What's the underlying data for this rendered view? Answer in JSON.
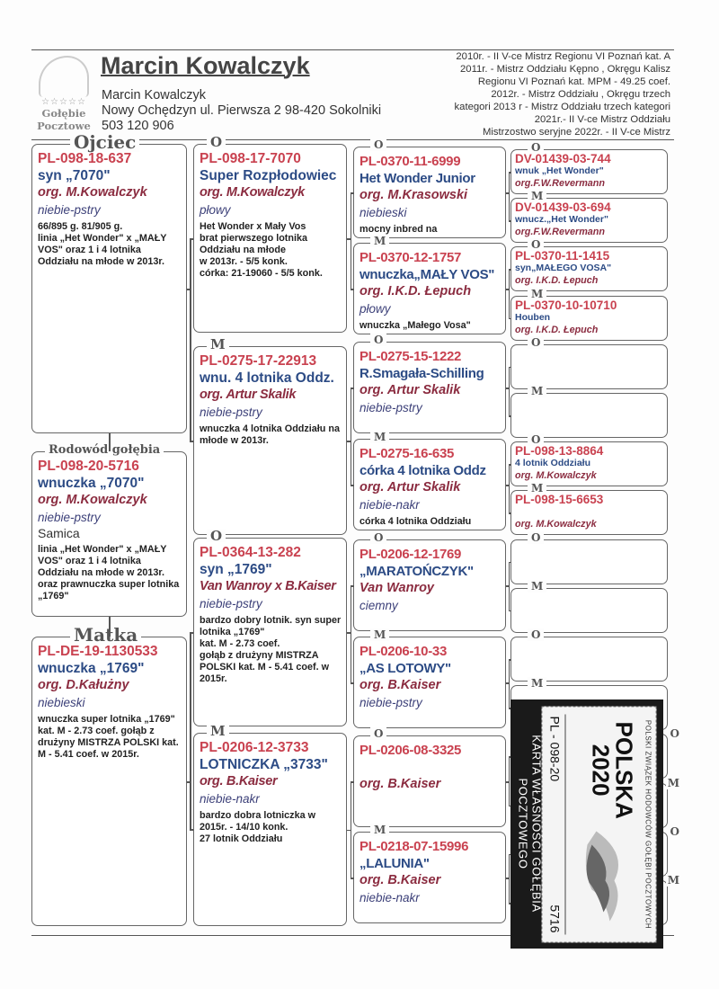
{
  "header": {
    "logo": {
      "stars": "☆☆☆☆☆",
      "line1": "Gołębie",
      "line2": "Pocztowe"
    },
    "title": "Marcin Kowalczyk",
    "owner": "Marcin Kowalczyk",
    "address": "Nowy Ochędzyn  ul. Pierwsza 2  98-420 Sokolniki",
    "phone": "503 120 906",
    "honors": [
      "2010r. - II V-ce Mistrz Regionu VI Poznań kat. A",
      "2011r. - Mistrz Oddziału Kępno , Okręgu Kalisz",
      "Regionu VI Poznań kat. MPM - 49.25 coef.",
      "2012r. - Mistrz Oddziału , Okręgu trzech",
      "kategori     2013 r - Mistrz Oddziału trzech kategori",
      "2021r.- II V-ce Mistrz Oddziału",
      "Mistrzostwo seryjne 2022r. - II V-ce Mistrz"
    ]
  },
  "colors": {
    "ring": "#c94250",
    "name": "#2c4b85",
    "breeder": "#8b2c40",
    "color": "#3b3f78"
  },
  "subject": {
    "label": "Rodowód gołębia",
    "ring": "PL-098-20-5716",
    "name": "wnuczka „7070\"",
    "breeder": "org. M.Kowalczyk",
    "color": "niebie-pstry",
    "sex": "Samica",
    "notes": "linia „Het Wonder\" x „MAŁY VOS\" oraz 1 i 4 lotnika Oddziału na młode w 2013r. oraz prawnuczka super lotnika „1769\""
  },
  "sire": {
    "label": "Ojciec",
    "ring": "PL-098-18-637",
    "name": "syn „7070\"",
    "breeder": "org. M.Kowalczyk",
    "color": "niebie-pstry",
    "notes": "66/895 g.         81/905 g.\nlinia „Het Wonder\" x „MAŁY VOS\" oraz 1 i 4 lotnika Oddziału na młode w 2013r."
  },
  "dam": {
    "label": "Matka",
    "ring": "PL-DE-19-1130533",
    "name": "wnuczka „1769\"",
    "breeder": "org. D.Kałużny",
    "color": "niebieski",
    "notes": "wnuczka super lotnika „1769\" kat. M - 2.73 coef. gołąb z drużyny MISTRZA POLSKI kat. M - 5.41 coef. w 2015r."
  },
  "gen2": [
    {
      "label": "O",
      "ring": "PL-098-17-7070",
      "name": "Super Rozpłodowiec",
      "breeder": "org. M.Kowalczyk",
      "color": "płowy",
      "notes": "Het Wonder x Mały Vos\nbrat pierwszego lotnika Oddziału na młode\nw 2013r. - 5/5 konk.\ncórka: 21-19060 - 5/5 konk."
    },
    {
      "label": "M",
      "ring": "PL-0275-17-22913",
      "name": "wnu. 4 lotnika Oddz.",
      "breeder": "org. Artur Skalik",
      "color": "niebie-pstry",
      "notes": "wnuczka 4 lotnika Oddziału na młode w 2013r."
    },
    {
      "label": "O",
      "ring": "PL-0364-13-282",
      "name": "syn „1769\"",
      "breeder": "Van Wanroy x B.Kaiser",
      "color": "niebie-pstry",
      "notes": "bardzo dobry lotnik. syn super lotnika  „1769\"\nkat. M - 2.73 coef.\ngołąb z drużyny MISTRZA POLSKI kat. M - 5.41 coef. w 2015r."
    },
    {
      "label": "M",
      "ring": "PL-0206-12-3733",
      "name": "LOTNICZKA „3733\"",
      "breeder": "org. B.Kaiser",
      "color": "niebie-nakr",
      "notes": "bardzo dobra lotniczka w 2015r. - 14/10 konk.\n27 lotnik Oddziału"
    }
  ],
  "gen3": [
    {
      "label": "O",
      "ring": "PL-0370-11-6999",
      "name": "Het Wonder Junior",
      "breeder": "org. M.Krasowski",
      "color": "niebieski",
      "notes": "mocny inbred na"
    },
    {
      "label": "M",
      "ring": "PL-0370-12-1757",
      "name": "wnuczka„MAŁY VOS\"",
      "breeder": "org. I.K.D. Łepuch",
      "color": "płowy",
      "notes": "wnuczka „Małego Vosa\""
    },
    {
      "label": "O",
      "ring": "PL-0275-15-1222",
      "name": "R.Smagała-Schilling",
      "breeder": "org. Artur Skalik",
      "color": "niebie-pstry",
      "notes": ""
    },
    {
      "label": "M",
      "ring": "PL-0275-16-635",
      "name": "córka 4 lotnika Oddz",
      "breeder": "org. Artur Skalik",
      "color": "niebie-nakr",
      "notes": "córka 4 lotnika Oddziału"
    },
    {
      "label": "O",
      "ring": "PL-0206-12-1769",
      "name": "„MARATOŃCZYK\"",
      "breeder": "Van Wanroy",
      "color": "ciemny",
      "notes": ""
    },
    {
      "label": "M",
      "ring": "PL-0206-10-33",
      "name": "„AS LOTOWY\"",
      "breeder": "org. B.Kaiser",
      "color": "niebie-pstry",
      "notes": ""
    },
    {
      "label": "O",
      "ring": "PL-0206-08-3325",
      "name": "",
      "breeder": "org. B.Kaiser",
      "color": "",
      "notes": ""
    },
    {
      "label": "M",
      "ring": "PL-0218-07-15996",
      "name": "„LALUNIA\"",
      "breeder": "org. B.Kaiser",
      "color": "niebie-nakr",
      "notes": ""
    }
  ],
  "gen4": [
    {
      "label": "O",
      "ring": "DV-01439-03-744",
      "name": "wnuk „Het Wonder\"",
      "breeder": "org.F.W.Revermann"
    },
    {
      "label": "M",
      "ring": "DV-01439-03-694",
      "name": "wnucz.„Het Wonder\"",
      "breeder": "org.F.W.Revermann"
    },
    {
      "label": "O",
      "ring": "PL-0370-11-1415",
      "name": "syn„MAŁEGO VOSA\"",
      "breeder": "org. I.K.D. Łepuch"
    },
    {
      "label": "M",
      "ring": "PL-0370-10-10710",
      "name": "Houben",
      "breeder": "org. I.K.D. Łepuch"
    },
    {
      "label": "O",
      "ring": "",
      "name": "",
      "breeder": ""
    },
    {
      "label": "M",
      "ring": "",
      "name": "",
      "breeder": ""
    },
    {
      "label": "O",
      "ring": "PL-098-13-8864",
      "name": "4 lotnik Oddziału",
      "breeder": "org. M.Kowalczyk"
    },
    {
      "label": "M",
      "ring": "PL-098-15-6653",
      "name": "",
      "breeder": "org. M.Kowalczyk"
    },
    {
      "label": "O",
      "ring": "",
      "name": "",
      "breeder": ""
    },
    {
      "label": "M",
      "ring": "",
      "name": "",
      "breeder": ""
    },
    {
      "label": "O",
      "ring": "",
      "name": "",
      "breeder": ""
    },
    {
      "label": "M",
      "ring": "",
      "name": "",
      "breeder": ""
    },
    {
      "label": "O",
      "ring": "",
      "name": "",
      "breeder": ""
    },
    {
      "label": "M",
      "ring": "",
      "name": "",
      "breeder": ""
    },
    {
      "label": "O",
      "ring": "",
      "name": "",
      "breeder": ""
    },
    {
      "label": "M",
      "ring": "",
      "name": "",
      "breeder": ""
    }
  ],
  "stamp": {
    "top_text": "POLSKI ZWIĄZEK HODOWCÓW GOŁĘBI POCZTOWYCH",
    "country": "POLSKA",
    "year": "2020",
    "ring": "PL - 098-20",
    "number": "5716",
    "bottom_text": "KARTA WŁASNOŚCI GOŁĘBIA POCZTOWEGO"
  }
}
